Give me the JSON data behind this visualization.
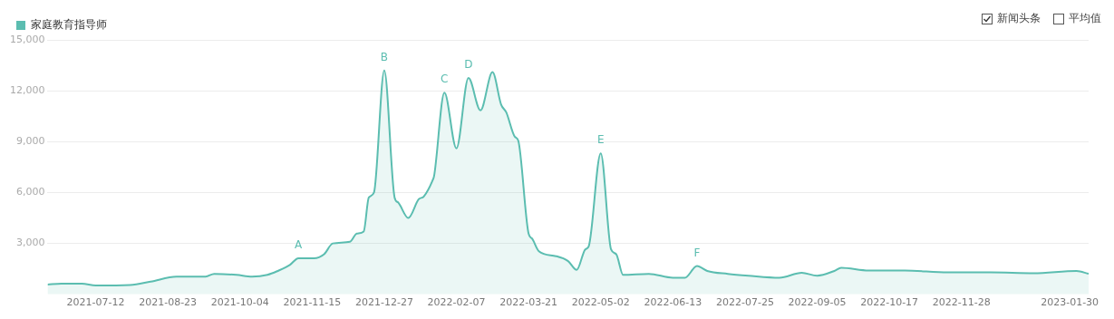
{
  "chart_data": {
    "type": "area",
    "x": [
      "2021-06-14",
      "2021-06-22",
      "2021-07-04",
      "2021-07-12",
      "2021-08-01",
      "2021-08-13",
      "2021-08-28",
      "2021-09-14",
      "2021-09-19",
      "2021-10-02",
      "2021-10-11",
      "2021-10-20",
      "2021-10-26",
      "2021-11-02",
      "2021-11-07",
      "2021-11-16",
      "2021-11-22",
      "2021-11-27",
      "2021-12-07",
      "2021-12-11",
      "2021-12-15",
      "2021-12-18",
      "2021-12-21",
      "2021-12-27",
      "2022-01-02",
      "2022-01-04",
      "2022-01-10",
      "2022-01-16",
      "2022-01-19",
      "2022-01-24",
      "2022-01-25",
      "2022-01-31",
      "2022-02-07",
      "2022-02-14",
      "2022-02-21",
      "2022-02-28",
      "2022-03-05",
      "2022-03-08",
      "2022-03-13",
      "2022-03-15",
      "2022-03-21",
      "2022-03-23",
      "2022-03-27",
      "2022-04-06",
      "2022-04-13",
      "2022-04-18",
      "2022-04-23",
      "2022-04-25",
      "2022-05-02",
      "2022-05-08",
      "2022-05-11",
      "2022-05-15",
      "2022-05-30",
      "2022-06-13",
      "2022-06-20",
      "2022-06-27",
      "2022-07-03",
      "2022-07-15",
      "2022-07-27",
      "2022-08-14",
      "2022-08-27",
      "2022-09-05",
      "2022-09-15",
      "2022-09-19",
      "2022-10-05",
      "2022-10-26",
      "2022-11-20",
      "2022-12-15",
      "2023-01-09",
      "2023-02-03",
      "2023-02-10"
    ],
    "series": [
      {
        "name": "家庭教育指导师",
        "color": "#5bbdb0",
        "values": [
          580,
          630,
          630,
          520,
          550,
          750,
          1040,
          1050,
          1210,
          1150,
          1040,
          1150,
          1380,
          1730,
          2130,
          2130,
          2370,
          3000,
          3100,
          3580,
          3700,
          5710,
          6000,
          13200,
          5710,
          5420,
          4500,
          5600,
          5770,
          6690,
          6980,
          11890,
          8600,
          12750,
          10850,
          13100,
          11190,
          10730,
          9290,
          9060,
          3580,
          3290,
          2540,
          2250,
          1960,
          1440,
          2650,
          2830,
          8310,
          2650,
          2370,
          1150,
          1210,
          980,
          980,
          1670,
          1380,
          1210,
          1100,
          980,
          1270,
          1100,
          1380,
          1560,
          1400,
          1400,
          1300,
          1300,
          1250,
          1380,
          1210
        ]
      }
    ],
    "xlim": [
      "2021-06-14",
      "2023-02-10"
    ],
    "xticks": [
      "2021-07-12",
      "2021-08-23",
      "2021-10-04",
      "2021-11-15",
      "2021-12-27",
      "2022-02-07",
      "2022-03-21",
      "2022-05-02",
      "2022-06-13",
      "2022-07-25",
      "2022-09-05",
      "2022-10-17",
      "2022-11-28",
      "2023-01-30"
    ],
    "ylim": [
      0,
      15000
    ],
    "yticks": [
      {
        "value": 3000,
        "label": "3,000"
      },
      {
        "value": 6000,
        "label": "6,000"
      },
      {
        "value": 9000,
        "label": "9,000"
      },
      {
        "value": 12000,
        "label": "12,000"
      },
      {
        "value": 15000,
        "label": "15,000"
      }
    ],
    "grid": "y",
    "legend": "top left",
    "tick_labels": "xy",
    "annotations": [
      {
        "text": "A",
        "x": "2021-11-07",
        "y": 2130
      },
      {
        "text": "B",
        "x": "2021-12-27",
        "y": 13200
      },
      {
        "text": "C",
        "x": "2022-01-31",
        "y": 11890
      },
      {
        "text": "D",
        "x": "2022-02-14",
        "y": 12750
      },
      {
        "text": "E",
        "x": "2022-05-02",
        "y": 8310
      },
      {
        "text": "F",
        "x": "2022-06-27",
        "y": 1670
      },
      "新闻头条",
      "平均值"
    ]
  }
}
